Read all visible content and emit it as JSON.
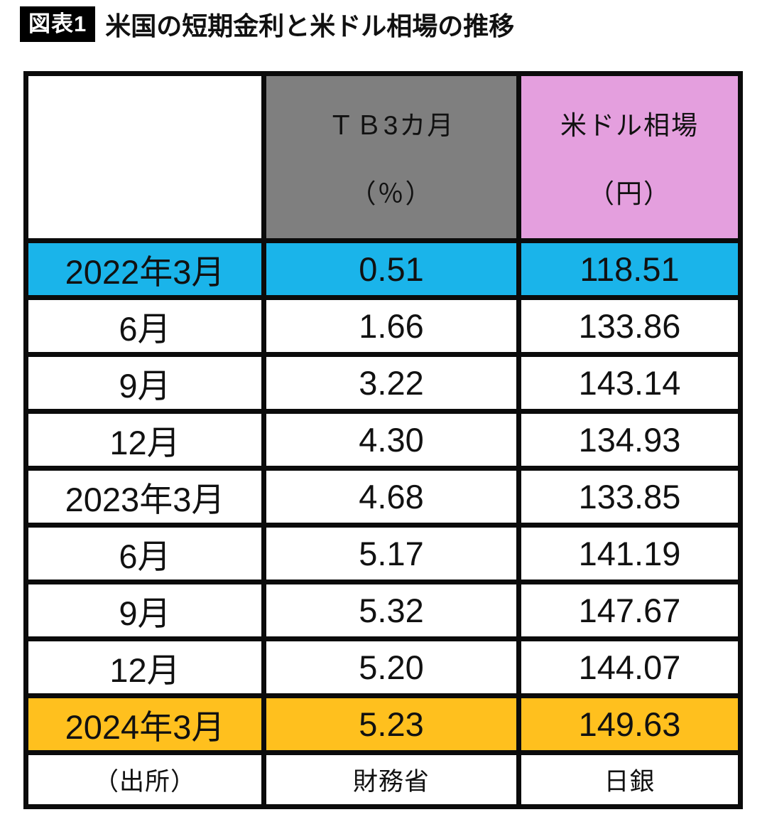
{
  "title": {
    "badge": "図表1",
    "text": "米国の短期金利と米ドル相場の推移"
  },
  "table": {
    "header": {
      "blank": "",
      "tb_line1": "ＴＢ3カ月",
      "tb_line2": "（％）",
      "usd_line1": "米ドル相場",
      "usd_line2": "（円）"
    },
    "rows": [
      {
        "month": "2022年3月",
        "tb": "0.51",
        "usd": "118.51",
        "highlight": "blue"
      },
      {
        "month": "6月",
        "tb": "1.66",
        "usd": "133.86",
        "highlight": "none"
      },
      {
        "month": "9月",
        "tb": "3.22",
        "usd": "143.14",
        "highlight": "none"
      },
      {
        "month": "12月",
        "tb": "4.30",
        "usd": "134.93",
        "highlight": "none"
      },
      {
        "month": "2023年3月",
        "tb": "4.68",
        "usd": "133.85",
        "highlight": "none"
      },
      {
        "month": "6月",
        "tb": "5.17",
        "usd": "141.19",
        "highlight": "none"
      },
      {
        "month": "9月",
        "tb": "5.32",
        "usd": "147.67",
        "highlight": "none"
      },
      {
        "month": "12月",
        "tb": "5.20",
        "usd": "144.07",
        "highlight": "none"
      },
      {
        "month": "2024年3月",
        "tb": "5.23",
        "usd": "149.63",
        "highlight": "orange"
      }
    ],
    "source": {
      "label": "（出所）",
      "tb": "財務省",
      "usd": "日銀"
    }
  },
  "colors": {
    "highlight_blue": "#1ab4ea",
    "highlight_orange": "#ffc01e",
    "header_gray": "#7f7f7f",
    "header_pink": "#e49fde",
    "border_black": "#0b0b0b",
    "text_black": "#111111"
  },
  "chart_data": {
    "type": "table",
    "title": "米国の短期金利と米ドル相場の推移",
    "columns": [
      "",
      "ＴＢ3カ月（％）",
      "米ドル相場（円）"
    ],
    "categories": [
      "2022年3月",
      "6月",
      "9月",
      "12月",
      "2023年3月",
      "6月",
      "9月",
      "12月",
      "2024年3月"
    ],
    "series": [
      {
        "name": "ＴＢ3カ月（％）",
        "values": [
          0.51,
          1.66,
          3.22,
          4.3,
          4.68,
          5.17,
          5.32,
          5.2,
          5.23
        ],
        "source": "財務省"
      },
      {
        "name": "米ドル相場（円）",
        "values": [
          118.51,
          133.86,
          143.14,
          134.93,
          133.85,
          141.19,
          147.67,
          144.07,
          149.63
        ],
        "source": "日銀"
      }
    ],
    "highlighted_rows": {
      "2022年3月": "blue",
      "2024年3月": "orange"
    },
    "source_row": {
      "label": "（出所）",
      "ＴＢ3カ月": "財務省",
      "米ドル相場": "日銀"
    }
  }
}
